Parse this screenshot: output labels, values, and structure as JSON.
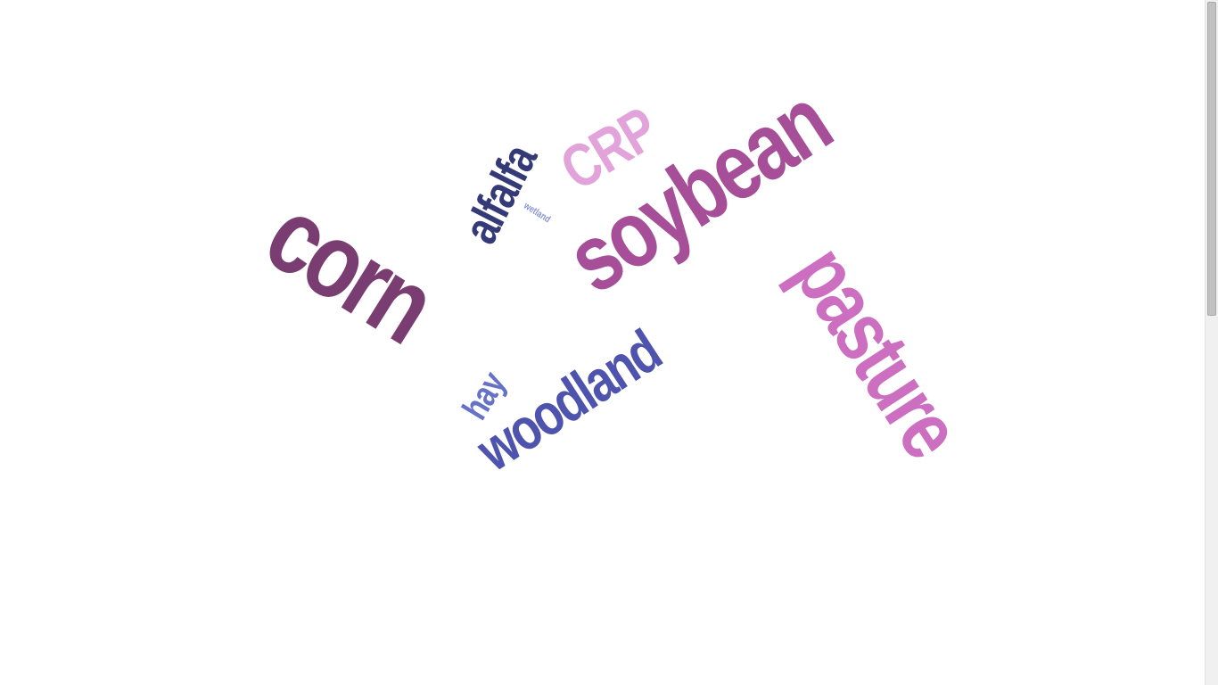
{
  "wordcloud": {
    "words": [
      {
        "id": "corn",
        "text": "corn",
        "color": "#7a3d72"
      },
      {
        "id": "soybean",
        "text": "soybean",
        "color": "#a64f98"
      },
      {
        "id": "pasture",
        "text": "pasture",
        "color": "#cd6fc1"
      },
      {
        "id": "woodland",
        "text": "woodland",
        "color": "#4e54ad"
      },
      {
        "id": "alfalfa",
        "text": "alfalfa",
        "color": "#343a78"
      },
      {
        "id": "crp",
        "text": "CRP",
        "color": "#e1a3d9"
      },
      {
        "id": "hay",
        "text": "hay",
        "color": "#6671c8"
      },
      {
        "id": "wetland",
        "text": "wetland",
        "color": "#8b94d8"
      }
    ]
  },
  "scrollbar": {
    "position": 0.0
  }
}
